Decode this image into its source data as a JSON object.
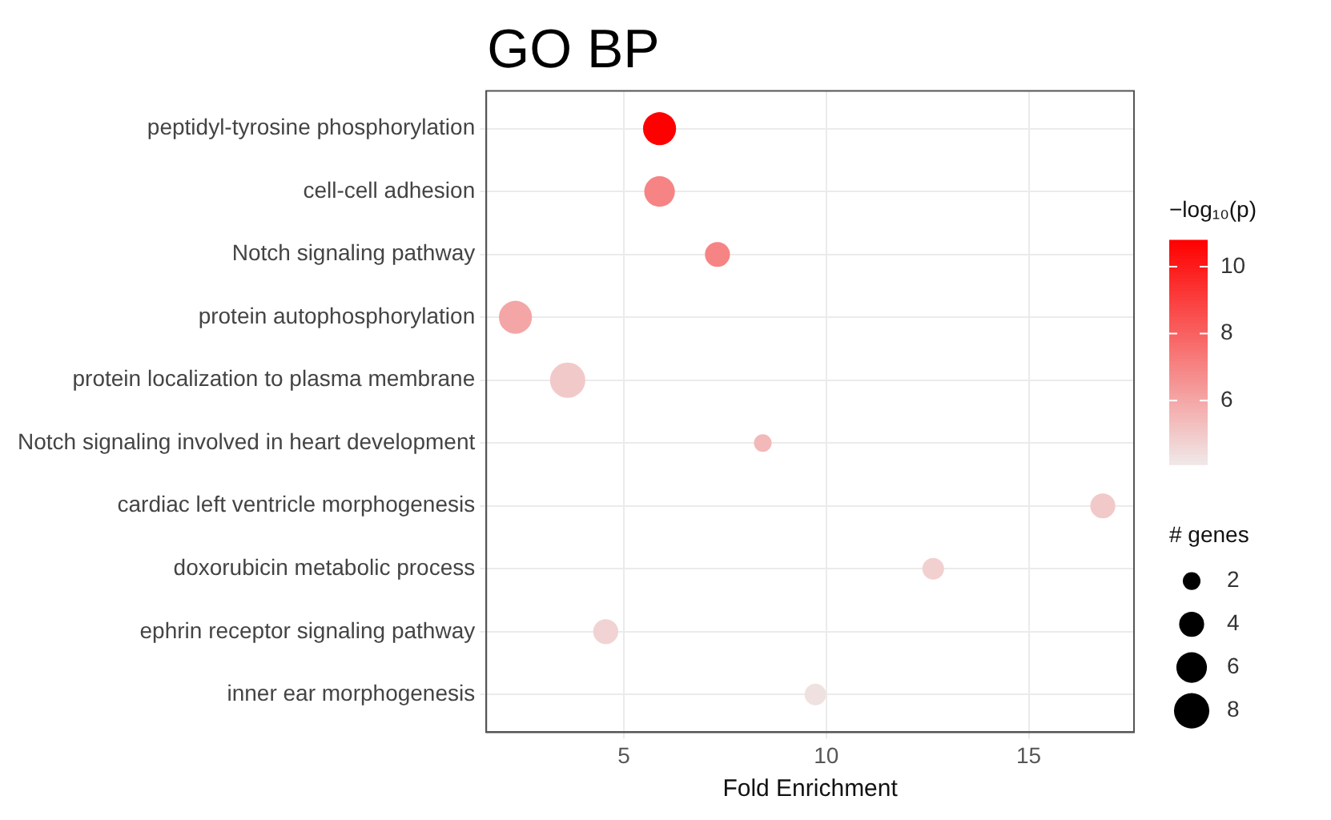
{
  "chart_data": {
    "type": "bubble",
    "orientation": "horizontal",
    "title": "GO BP",
    "xlabel": "Fold Enrichment",
    "clabel": "−log₁₀(p)",
    "legend_title": "# genes",
    "categories": [
      "peptidyl-tyrosine phosphorylation",
      "cell-cell adhesion",
      "Notch signaling pathway",
      "protein autophosphorylation",
      "protein localization to plasma membrane",
      "Notch signaling involved in heart development",
      "cardiac left ventricle morphogenesis",
      "doxorubicin metabolic process",
      "ephrin receptor signaling pathway",
      "inner ear morphogenesis"
    ],
    "values": [
      5.88,
      5.88,
      7.31,
      2.32,
      3.61,
      8.43,
      16.83,
      12.64,
      4.55,
      9.73
    ],
    "sizes": [
      7,
      6,
      4,
      7,
      8,
      2,
      4,
      3,
      4,
      3
    ],
    "cvalues": [
      10.8,
      7,
      7,
      6,
      5,
      5.5,
      5,
      4.8,
      4.7,
      4.3
    ],
    "clim": [
      4.1,
      10.8
    ],
    "cticks": [
      6,
      8,
      10
    ],
    "size_legend": [
      2,
      4,
      6,
      8
    ],
    "xlim": [
      1.6,
      17.6
    ],
    "xticks": [
      5,
      10,
      15
    ],
    "grid": true
  }
}
